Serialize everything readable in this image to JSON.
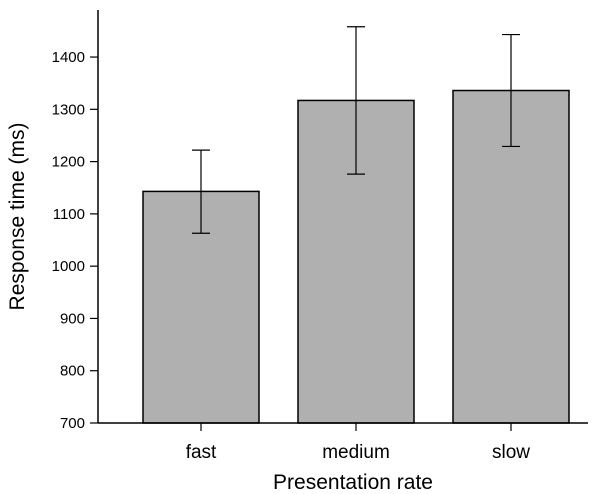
{
  "chart_data": {
    "type": "bar",
    "title": "",
    "xlabel": "Presentation rate",
    "ylabel": "Response time (ms)",
    "categories": [
      "fast",
      "medium",
      "slow"
    ],
    "values": [
      1143,
      1317,
      1336
    ],
    "error_low": [
      1063,
      1176,
      1229
    ],
    "error_high": [
      1222,
      1458,
      1443
    ],
    "ylim": [
      700,
      1490
    ],
    "yticks": [
      700,
      800,
      900,
      1000,
      1100,
      1200,
      1300,
      1400
    ],
    "grid": false,
    "legend": "none",
    "bar_color": "#b0b0b0",
    "edge_color": "#000000"
  }
}
